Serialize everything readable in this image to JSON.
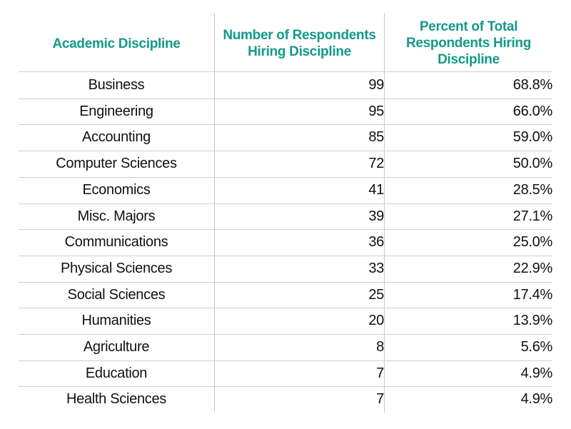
{
  "chart_data": {
    "type": "table",
    "columns": [
      "Academic Discipline",
      "Number of Respondents Hiring Discipline",
      "Percent of Total Respondents Hiring Discipline"
    ],
    "header_lines": [
      [
        "Academic Discipline"
      ],
      [
        "Number of Respondents",
        "Hiring Discipline"
      ],
      [
        "Percent of Total",
        "Respondents Hiring",
        "Discipline"
      ]
    ],
    "rows": [
      {
        "discipline": "Business",
        "respondents": "99",
        "percent": "68.8%"
      },
      {
        "discipline": "Engineering",
        "respondents": "95",
        "percent": "66.0%"
      },
      {
        "discipline": "Accounting",
        "respondents": "85",
        "percent": "59.0%"
      },
      {
        "discipline": "Computer Sciences",
        "respondents": "72",
        "percent": "50.0%"
      },
      {
        "discipline": "Economics",
        "respondents": "41",
        "percent": "28.5%"
      },
      {
        "discipline": "Misc. Majors",
        "respondents": "39",
        "percent": "27.1%"
      },
      {
        "discipline": "Communications",
        "respondents": "36",
        "percent": "25.0%"
      },
      {
        "discipline": "Physical Sciences",
        "respondents": "33",
        "percent": "22.9%"
      },
      {
        "discipline": "Social Sciences",
        "respondents": "25",
        "percent": "17.4%"
      },
      {
        "discipline": "Humanities",
        "respondents": "20",
        "percent": "13.9%"
      },
      {
        "discipline": "Agriculture",
        "respondents": "8",
        "percent": "5.6%"
      },
      {
        "discipline": "Education",
        "respondents": "7",
        "percent": "4.9%"
      },
      {
        "discipline": "Health Sciences",
        "respondents": "7",
        "percent": "4.9%"
      }
    ]
  },
  "colors": {
    "header_text": "#13998a",
    "body_text": "#111111",
    "rule": "#cfcfcf"
  }
}
